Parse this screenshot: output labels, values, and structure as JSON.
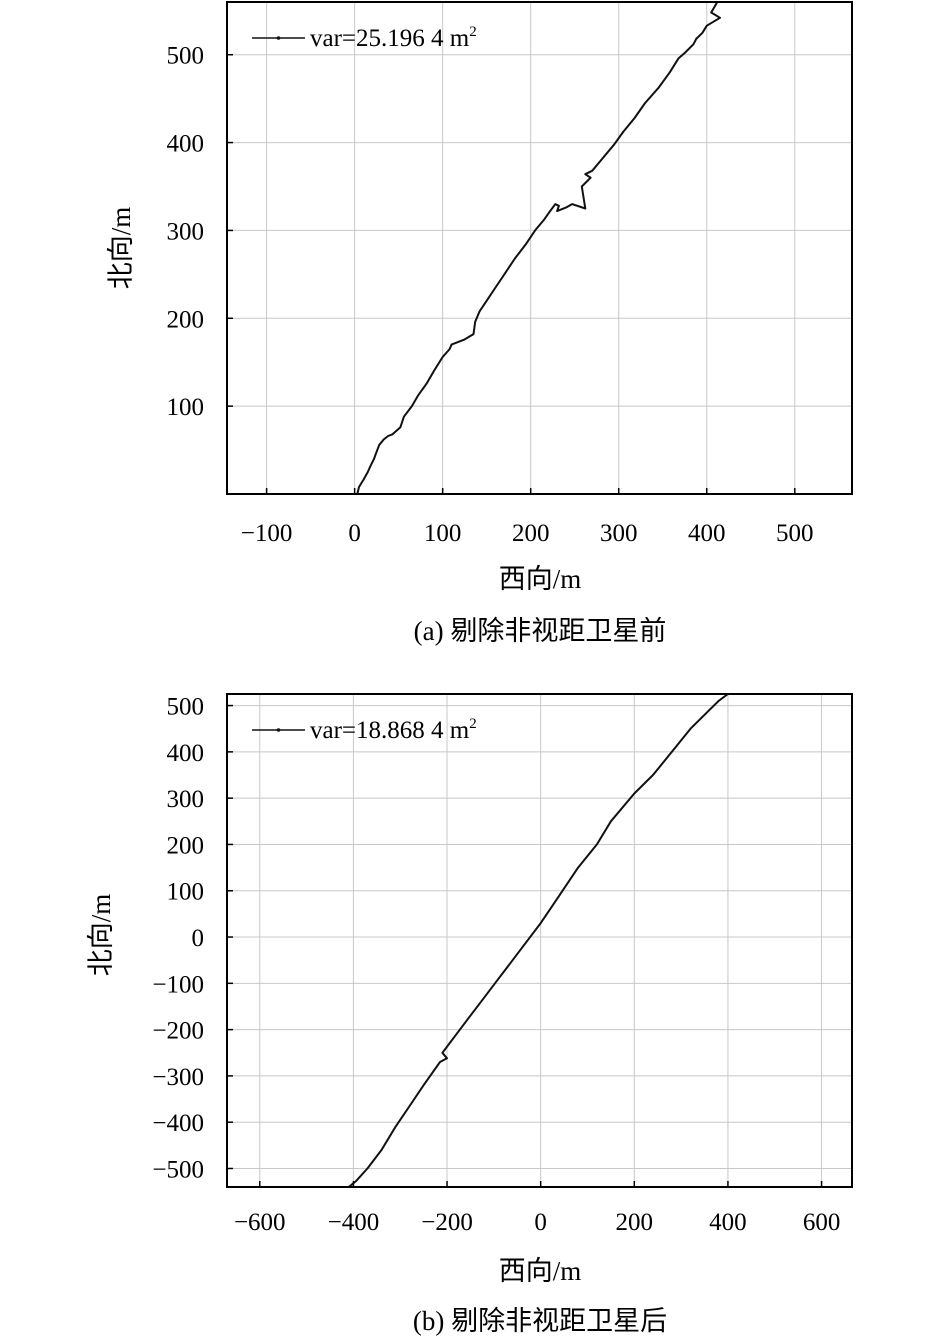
{
  "chart_data": [
    {
      "type": "line",
      "caption": "(a) 剔除非视距卫星前",
      "xlabel": "西向/m",
      "ylabel": "北向/m",
      "xlim": [
        -145,
        565
      ],
      "ylim": [
        0,
        560
      ],
      "xticks": [
        "−100",
        "0",
        "100",
        "200",
        "300",
        "400",
        "500"
      ],
      "xtick_values": [
        -100,
        0,
        100,
        200,
        300,
        400,
        500
      ],
      "yticks": [
        "100",
        "200",
        "300",
        "400",
        "500"
      ],
      "ytick_values": [
        100,
        200,
        300,
        400,
        500
      ],
      "grid": true,
      "legend": {
        "position": "top-left",
        "label": "var=25.196 4 m",
        "superscript": "2"
      },
      "series": [
        {
          "name": "var=25.196 4 m²",
          "x": [
            3,
            5,
            10,
            15,
            18,
            22,
            25,
            28,
            33,
            38,
            43,
            52,
            56,
            65,
            72,
            82,
            90,
            100,
            108,
            110,
            125,
            135,
            137,
            142,
            150,
            160,
            170,
            182,
            195,
            205,
            215,
            222,
            228,
            232,
            230,
            240,
            247,
            262,
            258,
            268,
            262,
            270,
            280,
            295,
            305,
            318,
            330,
            345,
            358,
            368,
            375,
            385,
            388,
            395,
            400,
            415,
            405,
            412
          ],
          "y": [
            0,
            8,
            16,
            25,
            32,
            40,
            48,
            56,
            62,
            66,
            68,
            76,
            88,
            100,
            112,
            126,
            140,
            156,
            165,
            170,
            176,
            182,
            196,
            208,
            220,
            235,
            250,
            268,
            285,
            300,
            312,
            322,
            330,
            328,
            322,
            326,
            330,
            325,
            350,
            360,
            364,
            368,
            380,
            398,
            412,
            428,
            445,
            462,
            480,
            496,
            502,
            512,
            518,
            525,
            533,
            542,
            548,
            560
          ]
        }
      ]
    },
    {
      "type": "line",
      "caption": "(b) 剔除非视距卫星后",
      "xlabel": "西向/m",
      "ylabel": "北向/m",
      "xlim": [
        -670,
        665
      ],
      "ylim": [
        -540,
        525
      ],
      "xticks": [
        "−600",
        "−400",
        "−200",
        "0",
        "200",
        "400",
        "600"
      ],
      "xtick_values": [
        -600,
        -400,
        -200,
        0,
        200,
        400,
        600
      ],
      "yticks": [
        "500",
        "400",
        "300",
        "200",
        "100",
        "0",
        "−100",
        "−200",
        "−300",
        "−400",
        "−500"
      ],
      "ytick_values": [
        500,
        400,
        300,
        200,
        100,
        0,
        -100,
        -200,
        -300,
        -400,
        -500
      ],
      "grid": true,
      "legend": {
        "position": "top-left",
        "label": "var=18.868 4 m",
        "superscript": "2"
      },
      "series": [
        {
          "name": "var=18.868 4 m²",
          "x": [
            -410,
            -395,
            -370,
            -340,
            -310,
            -280,
            -250,
            -215,
            -200,
            -210,
            -195,
            -180,
            -150,
            -120,
            -90,
            -60,
            -30,
            0,
            40,
            80,
            120,
            150,
            200,
            240,
            280,
            320,
            360,
            380,
            400
          ],
          "y": [
            -540,
            -528,
            -500,
            -460,
            -410,
            -365,
            -320,
            -270,
            -262,
            -250,
            -230,
            -210,
            -170,
            -130,
            -90,
            -50,
            -10,
            30,
            90,
            150,
            200,
            250,
            310,
            350,
            400,
            450,
            490,
            510,
            525
          ]
        }
      ]
    }
  ]
}
